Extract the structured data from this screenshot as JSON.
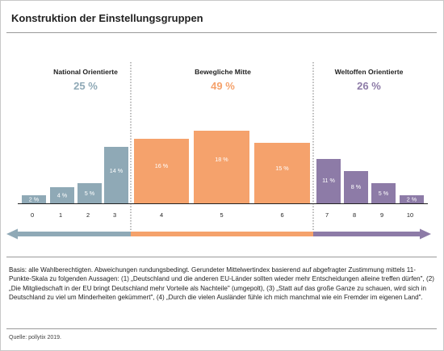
{
  "title": "Konstruktion der Einstellungsgruppen",
  "chart_data": {
    "type": "bar",
    "categories": [
      "0",
      "1",
      "2",
      "3",
      "4",
      "5",
      "6",
      "7",
      "8",
      "9",
      "10"
    ],
    "values": [
      2,
      4,
      5,
      14,
      16,
      18,
      15,
      11,
      8,
      5,
      2
    ],
    "value_labels": [
      "2 %",
      "4 %",
      "5 %",
      "14 %",
      "16 %",
      "18 %",
      "15 %",
      "11 %",
      "8 %",
      "5 %",
      "2 %"
    ],
    "ylim": [
      0,
      19
    ],
    "groups": [
      {
        "label": "National Orientierte",
        "share": "25 %",
        "color": "#8fa9b6",
        "categories": [
          0,
          1,
          2,
          3
        ]
      },
      {
        "label": "Bewegliche Mitte",
        "share": "49 %",
        "color": "#f5a26c",
        "categories": [
          4,
          5,
          6
        ]
      },
      {
        "label": "Weltoffen Orientierte",
        "share": "26 %",
        "color": "#8d7ba7",
        "categories": [
          7,
          8,
          9,
          10
        ]
      }
    ],
    "legend": "none",
    "grid": false
  },
  "basis": "Basis: alle Wahlberechtigten. Abweichungen rundungsbedingt. Gerundeter Mittelwertindex basierend auf abgefragter Zustimmung mittels 11-Punkte-Skala zu folgenden Aussagen: (1) „Deutschland und die anderen EU-Länder sollten wieder mehr Entscheidungen alleine treffen dürfen\", (2) „Die Mitgliedschaft in der EU bringt Deutschland mehr Vorteile als Nachteile\" (umgepolt), (3) „Statt auf das große Ganze zu schauen, wird sich in Deutschland zu viel um Minderheiten gekümmert\", (4) „Durch die vielen Ausländer fühle ich mich manchmal wie ein Fremder im eigenen Land\".",
  "source": "Quelle: pollytix 2019."
}
